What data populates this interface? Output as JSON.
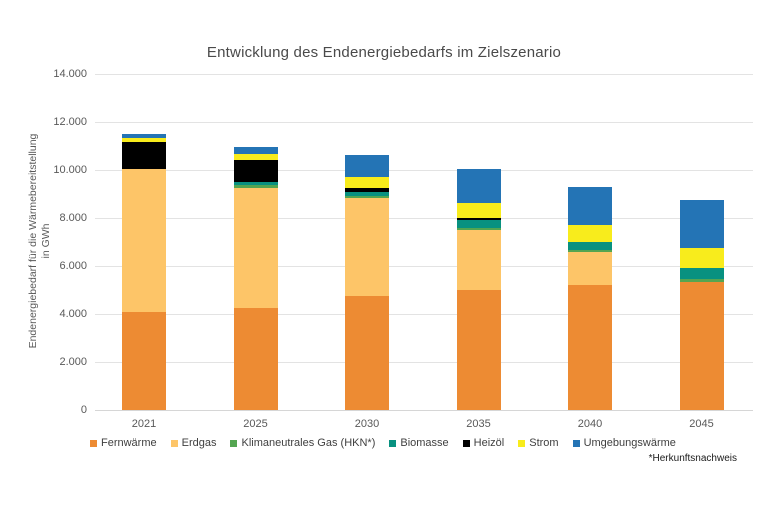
{
  "title": "Entwicklung des Endenergiebedarfs im Zielszenario",
  "footnote": "*Herkunftsnachweis",
  "y_axis": {
    "label_line1": "Endenergiebedarf für die Wärmebereitstellung",
    "label_line2": "in GWh",
    "ticks": [
      {
        "label": "0",
        "value": 0
      },
      {
        "label": "2.000",
        "value": 2000
      },
      {
        "label": "4.000",
        "value": 4000
      },
      {
        "label": "6.000",
        "value": 6000
      },
      {
        "label": "8.000",
        "value": 8000
      },
      {
        "label": "10.000",
        "value": 10000
      },
      {
        "label": "12.000",
        "value": 12000
      },
      {
        "label": "14.000",
        "value": 14000
      }
    ]
  },
  "chart_data": {
    "type": "bar",
    "stacked": true,
    "title": "Entwicklung des Endenergiebedarfs im Zielszenario",
    "xlabel": "",
    "ylabel": "Endenergiebedarf für die Wärmebereitstellung in GWh",
    "ylim": [
      0,
      14000
    ],
    "grid": true,
    "legend_position": "bottom",
    "categories": [
      "2021",
      "2025",
      "2030",
      "2035",
      "2040",
      "2045"
    ],
    "series": [
      {
        "name": "Fernwärme",
        "color": "#ED8B33",
        "values": [
          4100,
          4250,
          4750,
          5000,
          5200,
          5350
        ]
      },
      {
        "name": "Erdgas",
        "color": "#FDC568",
        "values": [
          5950,
          5000,
          4070,
          2500,
          1375,
          0
        ]
      },
      {
        "name": "Klimaneutrales Gas (HKN*)",
        "color": "#54A551",
        "values": [
          0,
          125,
          110,
          100,
          100,
          100
        ]
      },
      {
        "name": "Biomasse",
        "color": "#089180",
        "values": [
          0,
          125,
          140,
          310,
          330,
          460
        ]
      },
      {
        "name": "Heizöl",
        "color": "#000000",
        "values": [
          1100,
          900,
          200,
          100,
          0,
          0
        ]
      },
      {
        "name": "Strom",
        "color": "#F8EC1C",
        "values": [
          170,
          250,
          450,
          625,
          720,
          830
        ]
      },
      {
        "name": "Umgebungswärme",
        "color": "#2474B5",
        "values": [
          170,
          330,
          900,
          1390,
          1550,
          2000
        ]
      }
    ],
    "totals": [
      11490,
      10980,
      10620,
      10025,
      9275,
      8740
    ]
  }
}
